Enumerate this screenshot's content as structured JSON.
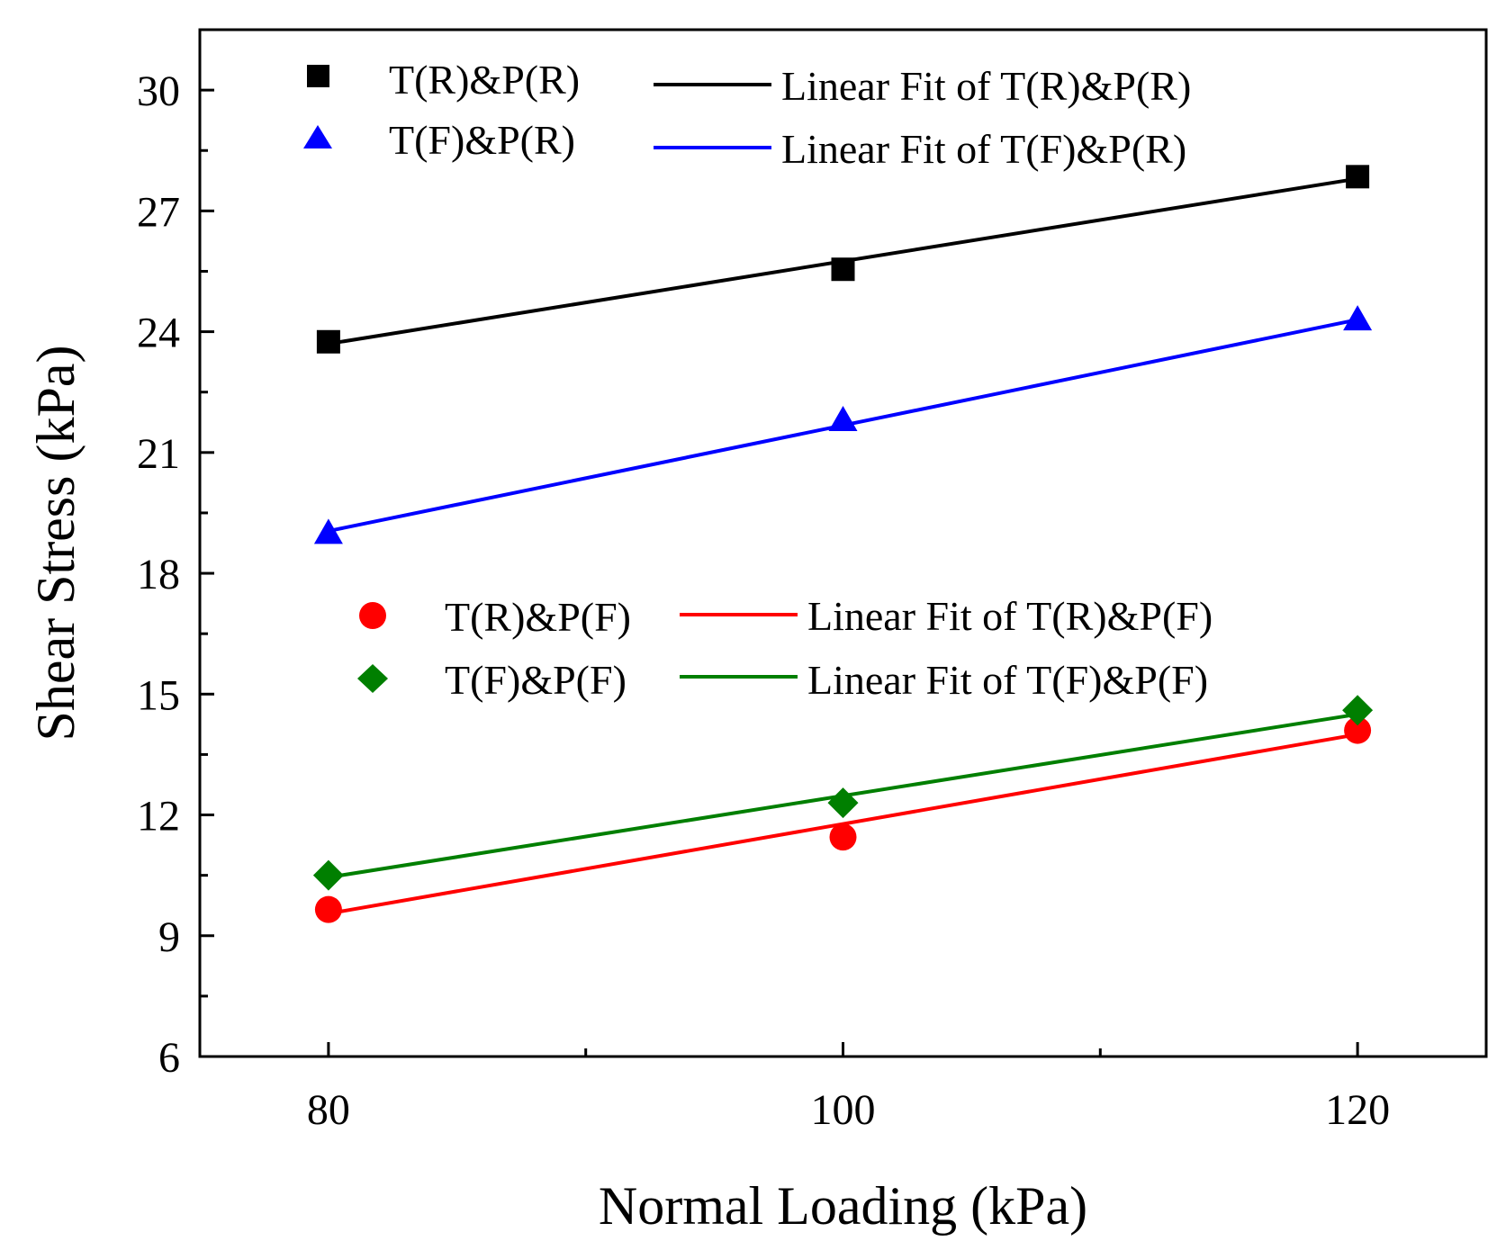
{
  "chart_data": {
    "type": "scatter",
    "title": "",
    "xlabel": "Normal Loading (kPa)",
    "ylabel": "Shear Stress (kPa)",
    "xlim": [
      75,
      125
    ],
    "ylim": [
      6,
      31.5
    ],
    "xticks": [
      80,
      100,
      120
    ],
    "yticks": [
      6,
      9,
      12,
      15,
      18,
      21,
      24,
      27,
      30
    ],
    "x_minor_step": 10,
    "y_minor_step": 1.5,
    "x": [
      80,
      100,
      120
    ],
    "series": [
      {
        "name": "T(R)&P(R)",
        "marker": "square",
        "color": "#000000",
        "values": [
          23.75,
          25.55,
          27.85
        ],
        "fit_name": "Linear Fit of T(R)&P(R)",
        "fit": [
          23.7,
          27.8
        ]
      },
      {
        "name": "T(F)&P(R)",
        "marker": "triangle",
        "color": "#0000ff",
        "values": [
          19.0,
          21.8,
          24.3
        ],
        "fit_name": "Linear Fit of T(F)&P(R)",
        "fit": [
          19.05,
          24.3
        ]
      },
      {
        "name": "T(R)&P(F)",
        "marker": "circle",
        "color": "#ff0000",
        "values": [
          9.65,
          11.45,
          14.1
        ],
        "fit_name": "Linear Fit of T(R)&P(F)",
        "fit": [
          9.55,
          14.0
        ]
      },
      {
        "name": "T(F)&P(F)",
        "marker": "diamond",
        "color": "#007f00",
        "values": [
          10.5,
          12.3,
          14.6
        ],
        "fit_name": "Linear Fit of T(F)&P(F)",
        "fit": [
          10.45,
          14.5
        ]
      }
    ],
    "fit_colors": [
      "#000000",
      "#0000ff",
      "#ff0000",
      "#007f00"
    ],
    "legend_placement": [
      "top-left",
      "middle-left"
    ]
  }
}
